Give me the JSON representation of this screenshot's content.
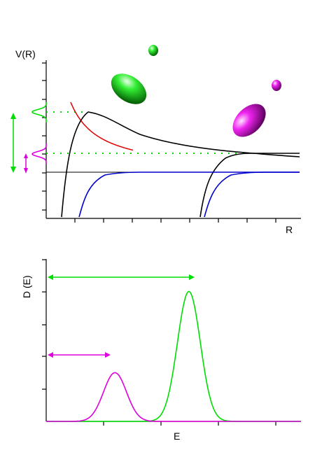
{
  "top_panel": {
    "ylabel": "V(R)",
    "xlabel": "R",
    "colors": {
      "repulsive": "#e00000",
      "bound": "#000000",
      "lower": "#0000cc",
      "green": "#00dd00",
      "magenta": "#dd00dd",
      "axis": "#000000"
    },
    "icons": [
      "green-small-sphere-icon",
      "green-ellipsoid-icon",
      "magenta-small-sphere-icon",
      "magenta-ellipsoid-icon"
    ]
  },
  "bottom_panel": {
    "ylabel": "D (E)",
    "xlabel": "E",
    "colors": {
      "green": "#00dd00",
      "magenta": "#dd00dd",
      "axis": "#000000"
    },
    "curves": [
      {
        "color": "green",
        "center": 0.56,
        "peak": 0.8,
        "width": 0.09
      },
      {
        "color": "magenta",
        "center": 0.27,
        "peak": 0.3,
        "width": 0.09
      }
    ]
  }
}
